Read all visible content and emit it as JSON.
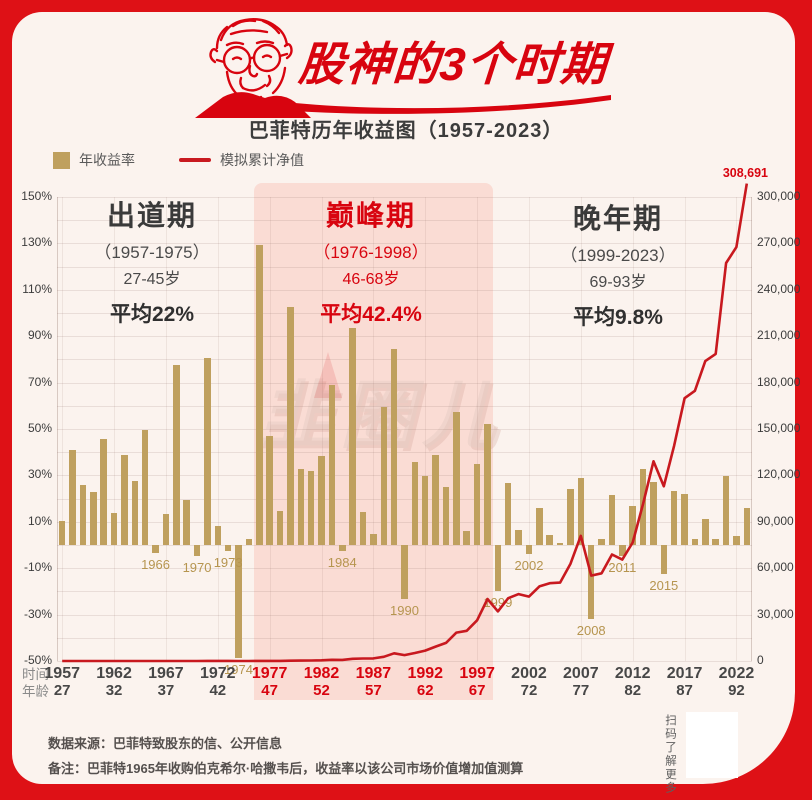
{
  "header": {
    "title": "股神的3个时期",
    "subtitle": "巴菲特历年收益图（1957-2023）"
  },
  "legend": {
    "bar_label": "年收益率",
    "line_label": "模拟累计净值"
  },
  "periods": [
    {
      "name": "出道期",
      "years": "（1957-1975）",
      "age": "27-45岁",
      "avg": "平均22%"
    },
    {
      "name": "巅峰期",
      "years": "（1976-1998）",
      "age": "46-68岁",
      "avg": "平均42.4%"
    },
    {
      "name": "晚年期",
      "years": "（1999-2023）",
      "age": "69-93岁",
      "avg": "平均9.8%"
    }
  ],
  "chart_data": {
    "type": "bar+line",
    "title": "巴菲特历年收益图（1957-2023）",
    "start_year": 1957,
    "end_year": 2023,
    "bar_series": {
      "name": "年收益率",
      "unit": "%",
      "values": [
        10.4,
        40.9,
        25.9,
        22.8,
        45.9,
        13.9,
        38.7,
        27.8,
        49.5,
        -3.4,
        13.3,
        77.8,
        19.4,
        -4.6,
        80.5,
        8.1,
        -2.5,
        -48.7,
        2.5,
        129.3,
        46.8,
        14.5,
        102.5,
        32.8,
        31.8,
        38.4,
        69.0,
        -2.7,
        93.7,
        14.2,
        4.6,
        59.3,
        84.6,
        -23.1,
        35.6,
        29.8,
        38.9,
        25.0,
        57.4,
        6.2,
        34.9,
        52.2,
        -19.9,
        26.6,
        6.5,
        -3.8,
        15.8,
        4.3,
        0.8,
        24.1,
        28.7,
        -31.8,
        2.7,
        21.4,
        -4.7,
        16.8,
        32.7,
        27.0,
        -12.5,
        23.4,
        21.9,
        2.8,
        11.0,
        2.4,
        29.6,
        4.0,
        15.8
      ]
    },
    "line_series": {
      "name": "模拟累计净值",
      "end_label": "308,691",
      "values": [
        1.1,
        1.56,
        1.96,
        2.4,
        3.51,
        4.0,
        5.54,
        7.08,
        10.59,
        10.23,
        11.59,
        20.61,
        24.61,
        23.48,
        42.37,
        45.81,
        44.66,
        22.91,
        23.48,
        53.85,
        79.05,
        90.51,
        183.29,
        243.41,
        320.81,
        444.0,
        750.36,
        730.1,
        1414.21,
        1615.03,
        1689.32,
        2691.08,
        4967.74,
        3820.19,
        5180.18,
        6723.88,
        9339.47,
        11674.33,
        18375.4,
        19514.67,
        26325.29,
        40067.1,
        32093.74,
        40630.68,
        43271.67,
        41627.35,
        48204.47,
        50277.26,
        50679.48,
        62893.24,
        80943.6,
        55203.53,
        56694.03,
        68826.55,
        65591.7,
        76611.11,
        101662.94,
        129111.94,
        112972.94,
        139408.61,
        169939.1,
        174697.4,
        193914.11,
        198568.05,
        257344.19,
        267637.96,
        308691
      ]
    },
    "left_axis": {
      "min": -50,
      "max": 150,
      "unit": "%",
      "ticks": [
        {
          "label": "150%",
          "value": 150
        },
        {
          "label": "130%",
          "value": 130
        },
        {
          "label": "110%",
          "value": 110
        },
        {
          "label": "90%",
          "value": 90
        },
        {
          "label": "70%",
          "value": 70
        },
        {
          "label": "50%",
          "value": 50
        },
        {
          "label": "30%",
          "value": 30
        },
        {
          "label": "10%",
          "value": 10
        },
        {
          "label": "-10%",
          "value": -10
        },
        {
          "label": "-30%",
          "value": -30
        },
        {
          "label": "-50%",
          "value": -50
        }
      ]
    },
    "right_axis": {
      "min": 0,
      "max": 300000,
      "ticks": [
        {
          "label": "300,000",
          "value": 300000
        },
        {
          "label": "270,000",
          "value": 270000
        },
        {
          "label": "240,000",
          "value": 240000
        },
        {
          "label": "210,000",
          "value": 210000
        },
        {
          "label": "180,000",
          "value": 180000
        },
        {
          "label": "150,000",
          "value": 150000
        },
        {
          "label": "120,000",
          "value": 120000
        },
        {
          "label": "90,000",
          "value": 90000
        },
        {
          "label": "60,000",
          "value": 60000
        },
        {
          "label": "30,000",
          "value": 30000
        },
        {
          "label": "0",
          "value": 0
        }
      ]
    },
    "highlight_region": {
      "from_year": 1976,
      "to_year": 1998
    },
    "labeled_years": [
      1966,
      1970,
      1973,
      1974,
      1984,
      1990,
      1999,
      2002,
      2008,
      2011,
      2015
    ],
    "x_axis": {
      "time_caption": "时间",
      "age_caption": "年龄",
      "ticks": [
        {
          "year": "1957",
          "age": "27",
          "red": false
        },
        {
          "year": "1962",
          "age": "32",
          "red": false
        },
        {
          "year": "1967",
          "age": "37",
          "red": false
        },
        {
          "year": "1972",
          "age": "42",
          "red": false
        },
        {
          "year": "1977",
          "age": "47",
          "red": true
        },
        {
          "year": "1982",
          "age": "52",
          "red": true
        },
        {
          "year": "1987",
          "age": "57",
          "red": true
        },
        {
          "year": "1992",
          "age": "62",
          "red": true
        },
        {
          "year": "1997",
          "age": "67",
          "red": true
        },
        {
          "year": "2002",
          "age": "72",
          "red": false
        },
        {
          "year": "2007",
          "age": "77",
          "red": false
        },
        {
          "year": "2012",
          "age": "82",
          "red": false
        },
        {
          "year": "2017",
          "age": "87",
          "red": false
        },
        {
          "year": "2022",
          "age": "92",
          "red": false
        }
      ]
    }
  },
  "colors": {
    "frame_red": "#de1116",
    "card_cream": "#fbf3ee",
    "bar_khaki": "#bfa05e",
    "line_red": "#c8191f",
    "accent_red": "#d8040f",
    "highlight_pink": "#fadcd4"
  },
  "watermark": "韭圈儿",
  "footer": {
    "source": "数据来源：巴菲特致股东的信、公开信息",
    "note": "备注：巴菲特1965年收购伯克希尔·哈撒韦后，收益率以该公司市场价值增加值测算"
  },
  "qr": {
    "label": "扫码了解更多"
  }
}
